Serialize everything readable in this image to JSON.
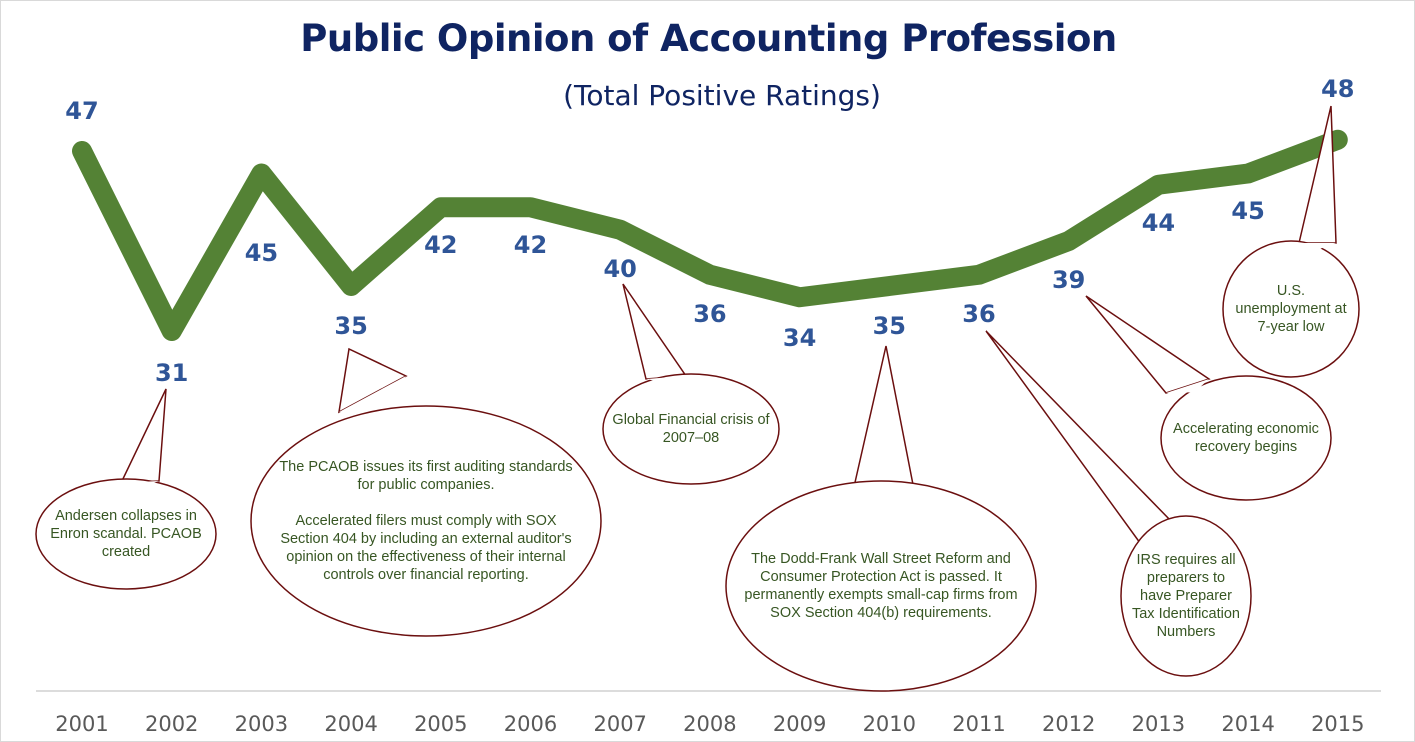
{
  "chart_data": {
    "type": "line",
    "title": "Public Opinion of Accounting Profession",
    "subtitle": "(Total Positive Ratings)",
    "xlabel": "",
    "ylabel": "",
    "categories": [
      "2001",
      "2002",
      "2003",
      "2004",
      "2005",
      "2006",
      "2007",
      "2008",
      "2009",
      "2010",
      "2011",
      "2012",
      "2013",
      "2014",
      "2015"
    ],
    "values": [
      47,
      31,
      45,
      35,
      42,
      42,
      40,
      36,
      34,
      35,
      36,
      39,
      44,
      45,
      48
    ],
    "grid": false,
    "legend": "none",
    "colors": {
      "line": "#548235",
      "data_label": "#2f5597",
      "axis_label": "#595959",
      "callout_border": "#6b0f0f",
      "callout_text": "#375623"
    },
    "annotations": [
      {
        "year": "2002",
        "text": "Andersen collapses in Enron scandal. PCAOB created"
      },
      {
        "year": "2004",
        "text": "The PCAOB issues its first auditing standards for public companies.\n\nAccelerated filers must comply with SOX Section 404 by including an external auditor's opinion on the effectiveness of their internal controls over financial reporting."
      },
      {
        "year": "2007",
        "text": "Global Financial crisis of 2007–08"
      },
      {
        "year": "2010",
        "text": "The Dodd-Frank Wall Street Reform and Consumer Protection Act is passed. It permanently exempts small-cap firms from SOX Section 404(b) requirements."
      },
      {
        "year": "2011",
        "text": "IRS requires all preparers to have Preparer Tax Identification Numbers"
      },
      {
        "year": "2012",
        "text": "Accelerating economic recovery begins"
      },
      {
        "year": "2015",
        "text": "U.S. unemployment at 7-year low"
      }
    ]
  }
}
